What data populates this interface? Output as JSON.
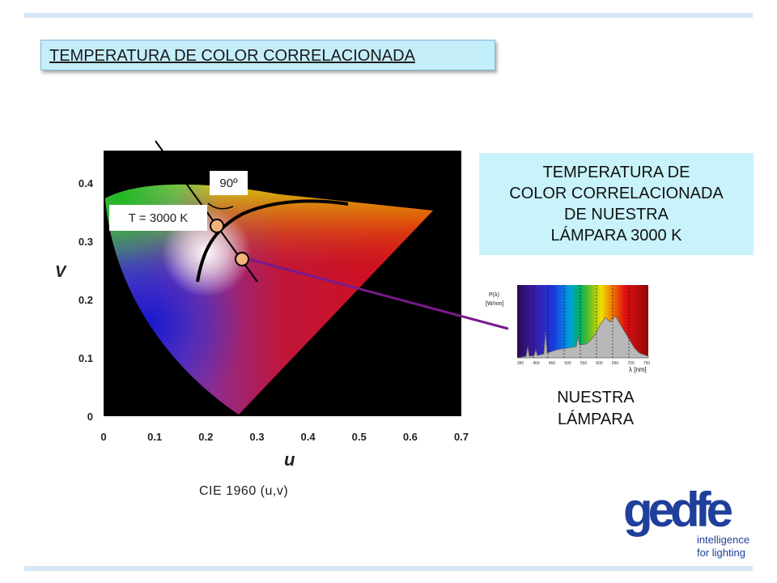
{
  "slide": {
    "title": "TEMPERATURA DE COLOR CORRELACIONADA",
    "callout_lines": [
      "TEMPERATURA DE",
      "COLOR CORRELACIONADA",
      "DE NUESTRA",
      "LÁMPARA 3000 K"
    ],
    "angle_label": "90º",
    "temp_label": "T = 3000 K",
    "lamp_label_lines": [
      "NUESTRA",
      "LÁMPARA"
    ],
    "cie_caption": "CIE 1960 (u,v)"
  },
  "cie_chart": {
    "x_axis_label": "u",
    "y_axis_label": "V",
    "x_ticks": [
      "0",
      "0.1",
      "0.2",
      "0.3",
      "0.4",
      "0.5",
      "0.6",
      "0.7"
    ],
    "y_ticks": [
      "0",
      "0.1",
      "0.2",
      "0.3",
      "0.4"
    ],
    "xlim": [
      0,
      0.7
    ],
    "ylim": [
      0,
      0.45
    ],
    "planckian_point": {
      "u": 0.22,
      "v": 0.33
    },
    "lamp_point": {
      "u": 0.27,
      "v": 0.27
    }
  },
  "spectrum": {
    "y_label_lines": [
      "P(λ)",
      "[W/nm]"
    ],
    "x_label": "λ [nm]",
    "x_ticks": [
      "350",
      "400",
      "450",
      "500",
      "550",
      "600",
      "650",
      "700",
      "750"
    ]
  },
  "logo": {
    "wordmark": "gedfe",
    "tagline_lines": [
      "intelligence",
      "for lighting"
    ]
  },
  "colors": {
    "accent_light_blue": "#c9f3fb",
    "rule_blue": "#d6e6f4",
    "arrow_purple": "#7a1a8c",
    "marker_fill": "#f2b27a",
    "logo_blue": "#1f3f9a"
  }
}
